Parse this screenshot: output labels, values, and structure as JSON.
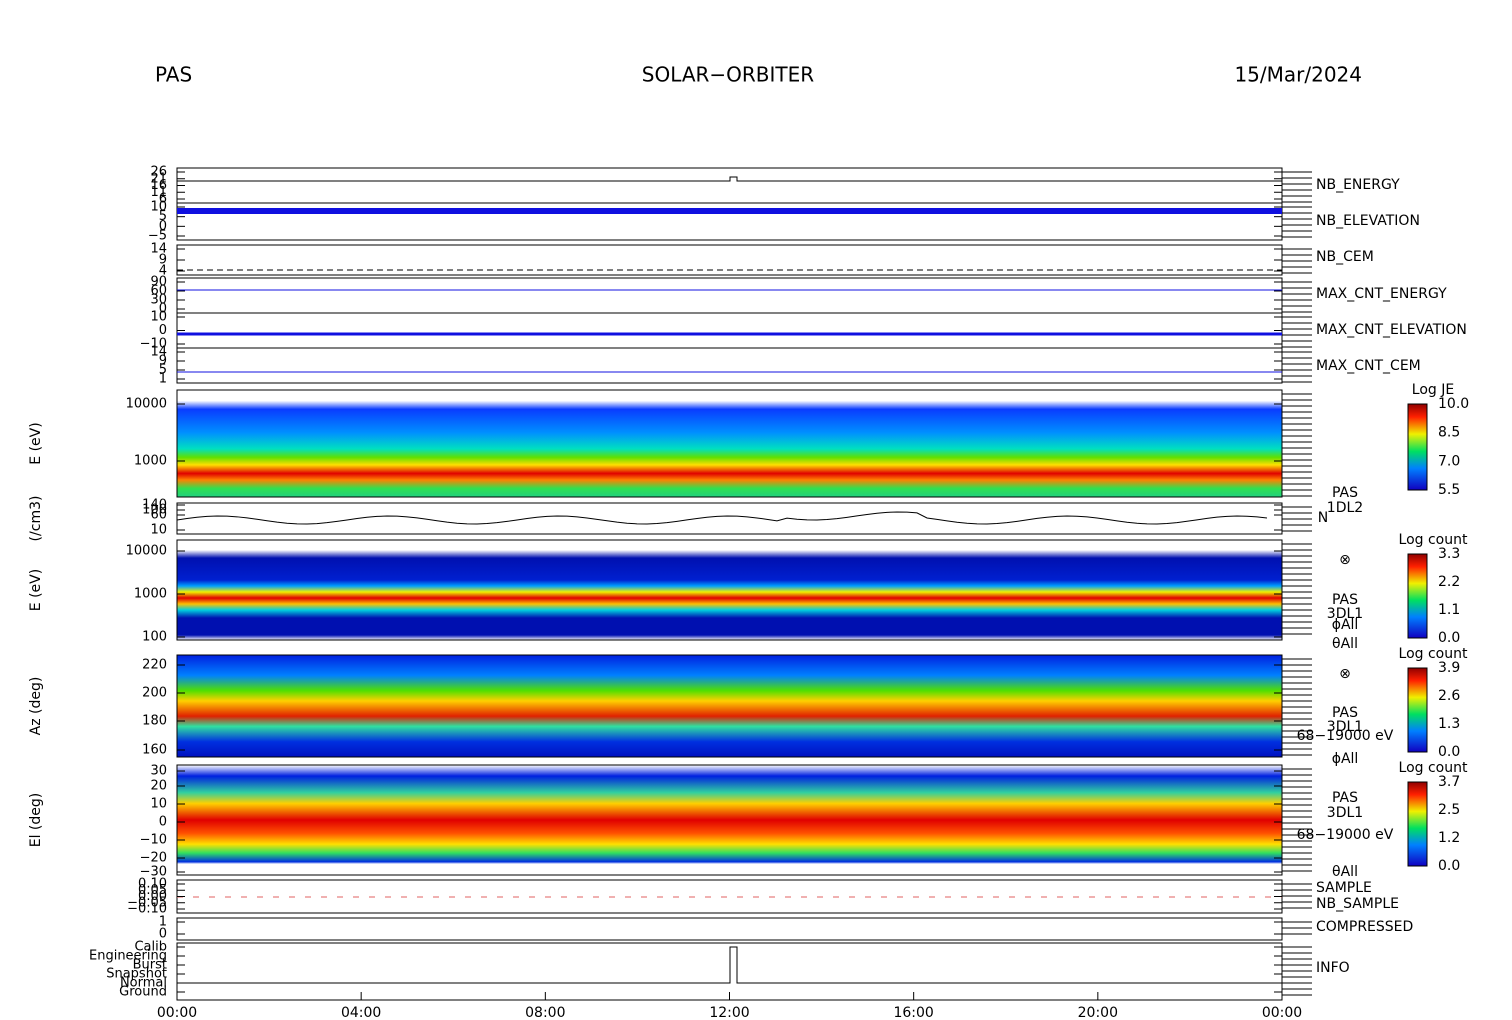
{
  "header": {
    "left": "PAS",
    "center": "SOLAR−ORBITER",
    "right": "15/Mar/2024"
  },
  "x_axis": {
    "ticks": [
      "00:00",
      "04:00",
      "08:00",
      "12:00",
      "16:00",
      "20:00",
      "00:00"
    ]
  },
  "panels": [
    {
      "yticks": [
        "26",
        "21",
        "16",
        "11",
        "6"
      ],
      "right_labels": [
        "NB_ENERGY"
      ]
    },
    {
      "yticks": [
        "10",
        "5",
        "0",
        "−5"
      ],
      "right_labels": [
        "NB_ELEVATION"
      ]
    },
    {
      "yticks": [
        "14",
        "9",
        "4"
      ],
      "right_labels": [
        "NB_CEM"
      ]
    },
    {
      "yticks": [
        "90",
        "60",
        "30",
        "0"
      ],
      "right_labels": [
        "MAX_CNT_ENERGY"
      ]
    },
    {
      "yticks": [
        "10",
        "0",
        "−10"
      ],
      "right_labels": [
        "MAX_CNT_ELEVATION"
      ]
    },
    {
      "yticks": [
        "14",
        "9",
        "5",
        "1"
      ],
      "right_labels": [
        "MAX_CNT_CEM"
      ]
    },
    {
      "ylabel": "E (eV)",
      "yticks": [
        "10000",
        "1000"
      ],
      "right_labels": [
        "PAS",
        "1DL2"
      ],
      "colorbar": {
        "title": "Log JE",
        "ticks": [
          "10.0",
          "8.5",
          "7.0",
          "5.5"
        ]
      }
    },
    {
      "ylabel": "(/cm3)",
      "yticks": [
        "140",
        "100",
        "60",
        "10"
      ],
      "right_labels": [
        "N"
      ]
    },
    {
      "ylabel": "E (eV)",
      "yticks": [
        "10000",
        "1000",
        "100"
      ],
      "right_labels": [
        "⊗",
        "PAS",
        "3DL1",
        "ϕAll",
        "θAll"
      ],
      "colorbar": {
        "title": "Log count",
        "ticks": [
          "3.3",
          "2.2",
          "1.1",
          "0.0"
        ]
      }
    },
    {
      "ylabel": "Az (deg)",
      "yticks": [
        "220",
        "200",
        "180",
        "160"
      ],
      "right_labels": [
        "⊗",
        "PAS",
        "3DL1",
        "68−19000 eV",
        "ϕAll"
      ],
      "colorbar": {
        "title": "Log count",
        "ticks": [
          "3.9",
          "2.6",
          "1.3",
          "0.0"
        ]
      }
    },
    {
      "ylabel": "El (deg)",
      "yticks": [
        "30",
        "20",
        "10",
        "0",
        "−10",
        "−20",
        "−30"
      ],
      "right_labels": [
        "PAS",
        "3DL1",
        "68−19000 eV",
        "θAll"
      ],
      "colorbar": {
        "title": "Log count",
        "ticks": [
          "3.7",
          "2.5",
          "1.2",
          "0.0"
        ]
      }
    },
    {
      "yticks": [
        "0.10",
        "0.05",
        "0.00",
        "−0.05",
        "−0.10"
      ],
      "right_labels": [
        "SAMPLE",
        "NB_SAMPLE"
      ]
    },
    {
      "yticks": [
        "1",
        "0"
      ],
      "right_labels": [
        "COMPRESSED"
      ]
    },
    {
      "yticks": [
        "Calib",
        "Engineering",
        "Burst",
        "Snapshot",
        "Normal",
        "Ground"
      ],
      "right_labels": [
        "INFO"
      ]
    }
  ]
}
